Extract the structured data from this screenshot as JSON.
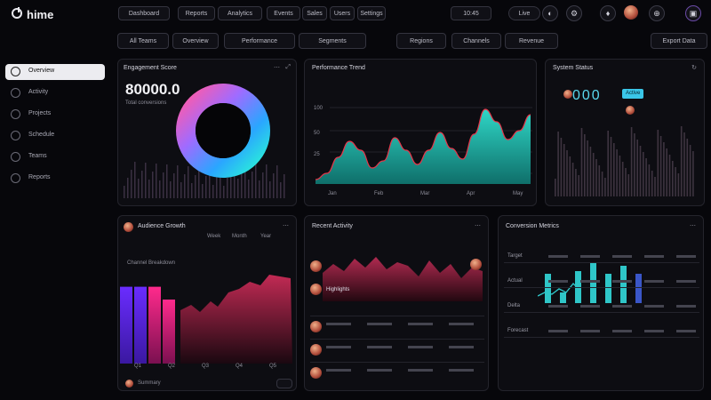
{
  "app": {
    "title": "hime"
  },
  "topbar": {
    "pills": [
      "Dashboard",
      "Reports",
      "Analytics",
      "Events",
      "Sales",
      "Users",
      "Settings"
    ],
    "right_pill": "10:45",
    "toggle": "Live"
  },
  "filters": [
    "All Teams",
    "Overview",
    "Performance",
    "Segments",
    "Regions",
    "Channels",
    "Revenue",
    "Export Data"
  ],
  "sidebar": {
    "items": [
      {
        "label": "Overview"
      },
      {
        "label": "Activity"
      },
      {
        "label": "Projects"
      },
      {
        "label": "Schedule"
      },
      {
        "label": "Teams"
      },
      {
        "label": "Reports"
      }
    ]
  },
  "panels": {
    "donut": {
      "title": "Engagement Score",
      "value": "80000.0",
      "subtitle": "Total conversions"
    },
    "wave": {
      "title": "Performance Trend",
      "yticks": [
        "100",
        "50",
        "25"
      ],
      "xticks": [
        "Jan",
        "Feb",
        "Mar",
        "Apr",
        "May"
      ]
    },
    "status": {
      "title": "System Status",
      "value": "000",
      "badge": "Active"
    },
    "bars": {
      "title": "Audience Growth",
      "legend": [
        "Week",
        "Month",
        "Year"
      ],
      "caption": "Channel Breakdown",
      "xticks": [
        "Q1",
        "Q2",
        "Q3",
        "Q4",
        "Q5"
      ],
      "footer": "Summary"
    },
    "feed": {
      "title": "Recent Activity",
      "label": "Highlights"
    },
    "columns": {
      "title": "Conversion Metrics",
      "rows": [
        "Target",
        "Actual",
        "Delta",
        "Forecast"
      ]
    }
  },
  "chart_data": [
    {
      "type": "area",
      "title": "Performance Trend",
      "x": [
        1,
        2,
        3,
        4,
        5,
        6,
        7,
        8,
        9,
        10,
        11,
        12,
        13,
        14,
        15,
        16,
        17,
        18,
        19,
        20
      ],
      "values": [
        5,
        12,
        30,
        48,
        38,
        18,
        26,
        52,
        38,
        22,
        38,
        58,
        40,
        28,
        56,
        84,
        70,
        50,
        60,
        78
      ],
      "ylim": [
        0,
        100
      ]
    },
    {
      "type": "bar",
      "title": "Audience Growth",
      "categories": [
        "1",
        "2",
        "3",
        "4"
      ],
      "values": [
        72,
        72,
        72,
        60
      ]
    },
    {
      "type": "bar",
      "title": "Conversion Metrics",
      "categories": [
        "1",
        "2",
        "3",
        "4",
        "5",
        "6",
        "7"
      ],
      "values": [
        55,
        20,
        60,
        75,
        55,
        70,
        55
      ]
    }
  ]
}
